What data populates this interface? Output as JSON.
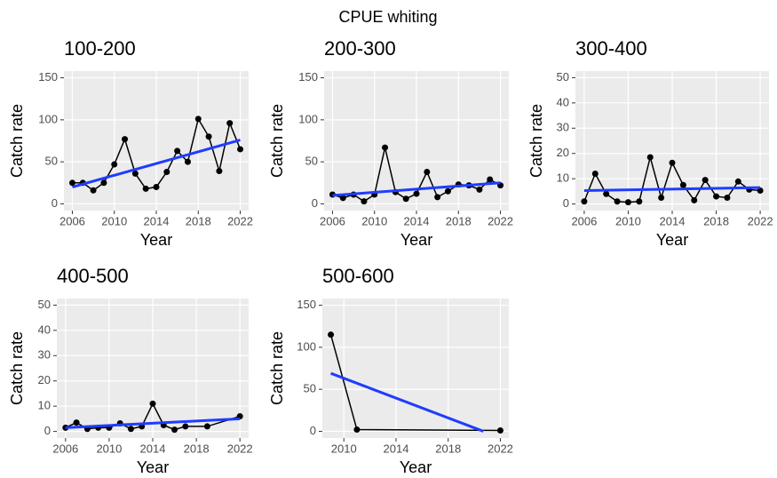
{
  "title": "CPUE whiting",
  "chart_data": [
    {
      "type": "line",
      "title": "100-200",
      "xlabel": "Year",
      "ylabel": "Catch rate",
      "x": [
        2006,
        2007,
        2008,
        2009,
        2010,
        2011,
        2012,
        2013,
        2014,
        2015,
        2016,
        2017,
        2018,
        2019,
        2020,
        2021,
        2022
      ],
      "series": [
        {
          "color": "#000000",
          "points": true,
          "values": [
            25,
            25,
            16,
            25,
            47,
            77,
            36,
            18,
            20,
            38,
            63,
            50,
            101,
            80,
            39,
            96,
            65
          ]
        },
        {
          "color": "#1f3cff",
          "points": false,
          "x": [
            2006,
            2022
          ],
          "values": [
            20,
            76
          ]
        }
      ],
      "xlim": [
        2005.2,
        2022.8
      ],
      "ylim": [
        -8,
        158
      ],
      "xticks": [
        2006,
        2010,
        2014,
        2018,
        2022
      ],
      "yticks": [
        0,
        50,
        100,
        150
      ],
      "grid": true
    },
    {
      "type": "line",
      "title": "200-300",
      "xlabel": "Year",
      "ylabel": "Catch rate",
      "x": [
        2006,
        2007,
        2008,
        2009,
        2010,
        2011,
        2012,
        2013,
        2014,
        2015,
        2016,
        2017,
        2018,
        2019,
        2020,
        2021,
        2022
      ],
      "series": [
        {
          "color": "#000000",
          "points": true,
          "values": [
            11,
            7,
            11,
            3,
            11,
            67,
            14,
            6,
            12,
            38,
            8,
            15,
            23,
            22,
            17,
            29,
            22
          ]
        },
        {
          "color": "#1f3cff",
          "points": false,
          "x": [
            2006,
            2022
          ],
          "values": [
            10,
            25
          ]
        }
      ],
      "xlim": [
        2005.2,
        2022.8
      ],
      "ylim": [
        -8,
        158
      ],
      "xticks": [
        2006,
        2010,
        2014,
        2018,
        2022
      ],
      "yticks": [
        0,
        50,
        100,
        150
      ],
      "grid": true
    },
    {
      "type": "line",
      "title": "300-400",
      "xlabel": "Year",
      "ylabel": "Catch rate",
      "x": [
        2006,
        2007,
        2008,
        2009,
        2010,
        2011,
        2012,
        2013,
        2014,
        2015,
        2016,
        2017,
        2018,
        2019,
        2020,
        2021,
        2022
      ],
      "series": [
        {
          "color": "#000000",
          "points": true,
          "values": [
            1,
            12,
            4,
            1,
            0.7,
            1,
            18.5,
            2.5,
            16.3,
            7.5,
            1.5,
            9.5,
            3,
            2.5,
            8.9,
            5.7,
            5.3
          ]
        },
        {
          "color": "#1f3cff",
          "points": false,
          "x": [
            2006,
            2022
          ],
          "values": [
            5.3,
            6.5
          ]
        }
      ],
      "xlim": [
        2005.2,
        2022.8
      ],
      "ylim": [
        -2.6,
        52.6
      ],
      "xticks": [
        2006,
        2010,
        2014,
        2018,
        2022
      ],
      "yticks": [
        0,
        10,
        20,
        30,
        40,
        50
      ],
      "grid": true
    },
    {
      "type": "line",
      "title": "400-500",
      "xlabel": "Year",
      "ylabel": "Catch rate",
      "x": [
        2006,
        2007,
        2008,
        2009,
        2010,
        2011,
        2012,
        2013,
        2014,
        2015,
        2016,
        2017,
        2019,
        2022
      ],
      "series": [
        {
          "color": "#000000",
          "points": true,
          "values": [
            1.5,
            3.5,
            1,
            1.5,
            1.5,
            3.2,
            1,
            2,
            11,
            2.5,
            0.7,
            2,
            2,
            6
          ]
        },
        {
          "color": "#1f3cff",
          "points": false,
          "x": [
            2006,
            2022
          ],
          "values": [
            1.5,
            5
          ]
        }
      ],
      "xlim": [
        2005.2,
        2022.8
      ],
      "ylim": [
        -2.6,
        52.6
      ],
      "xticks": [
        2006,
        2010,
        2014,
        2018,
        2022
      ],
      "yticks": [
        0,
        10,
        20,
        30,
        40,
        50
      ],
      "grid": true
    },
    {
      "type": "line",
      "title": "500-600",
      "xlabel": "Year",
      "ylabel": "Catch rate",
      "x": [
        2009,
        2011,
        2022
      ],
      "series": [
        {
          "color": "#000000",
          "points": true,
          "values": [
            115,
            2,
            1
          ]
        },
        {
          "color": "#1f3cff",
          "points": false,
          "x": [
            2009,
            2020.7
          ],
          "values": [
            69,
            0
          ]
        }
      ],
      "xlim": [
        2008.35,
        2022.65
      ],
      "ylim": [
        -8,
        158
      ],
      "xticks": [
        2010,
        2014,
        2018,
        2022
      ],
      "yticks": [
        0,
        50,
        100,
        150
      ],
      "grid": true
    }
  ]
}
